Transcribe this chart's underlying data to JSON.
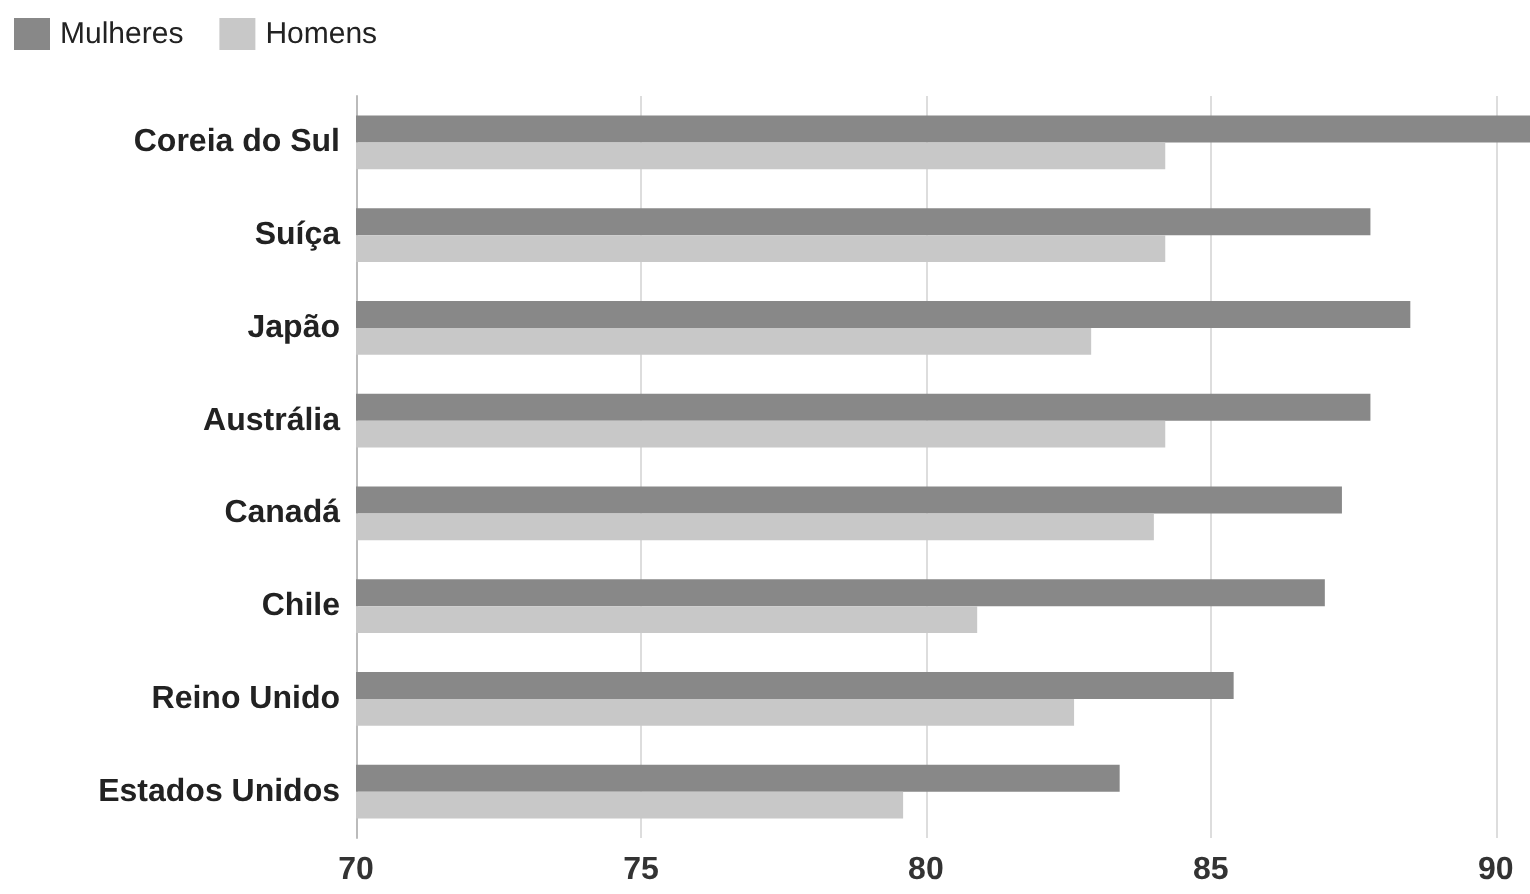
{
  "chart_data": {
    "type": "bar",
    "orientation": "horizontal",
    "categories": [
      "Coreia do Sul",
      "Suíça",
      "Japão",
      "Austrália",
      "Canadá",
      "Chile",
      "Reino Unido",
      "Estados Unidos"
    ],
    "series": [
      {
        "name": "Mulheres",
        "color": "#888888",
        "values": [
          90.6,
          87.8,
          88.5,
          87.8,
          87.3,
          87.0,
          85.4,
          83.4
        ]
      },
      {
        "name": "Homens",
        "color": "#c8c8c8",
        "values": [
          84.2,
          84.2,
          82.9,
          84.2,
          84.0,
          80.9,
          82.6,
          79.6
        ]
      }
    ],
    "xlim": [
      70,
      90.6
    ],
    "xticks": [
      70,
      75,
      80,
      85,
      90
    ],
    "grid": "x",
    "legend": "top left"
  }
}
